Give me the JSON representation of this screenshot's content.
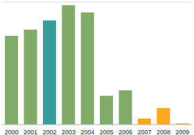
{
  "chart_data": {
    "type": "bar",
    "categories": [
      "2000",
      "2001",
      "2002",
      "2003",
      "2004",
      "2005",
      "2006",
      "2007",
      "2008",
      "2009"
    ],
    "values": [
      2.9,
      3.1,
      3.4,
      3.9,
      3.66,
      0.94,
      1.12,
      0.2,
      0.54,
      0.04
    ],
    "colors": [
      "#82ab69",
      "#82ab69",
      "#3a9c9a",
      "#82ab69",
      "#82ab69",
      "#82ab69",
      "#82ab69",
      "#fda91a",
      "#fda91a",
      "#fda91a"
    ],
    "ylim": [
      0,
      4
    ],
    "yticks": [
      0,
      1,
      2,
      3,
      4
    ],
    "grid": true,
    "tick_labels": "x"
  }
}
